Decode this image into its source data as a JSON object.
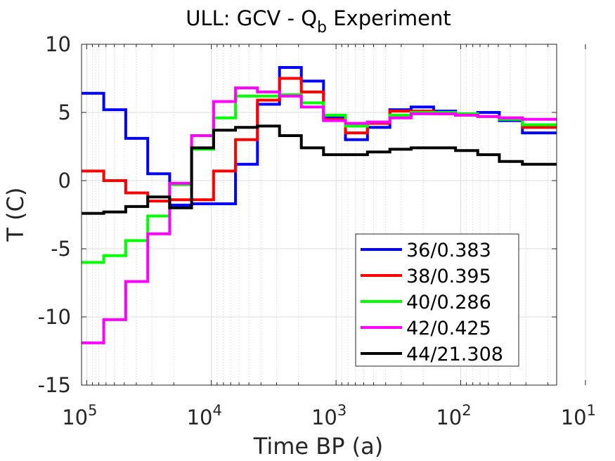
{
  "chart_data": {
    "type": "line",
    "title": {
      "main": "ULL: GCV - Q",
      "subscript": "b",
      "suffix": " Experiment"
    },
    "xlabel": "Time BP (a)",
    "ylabel": "T (C)",
    "x_scale": "log",
    "x_reversed": true,
    "xlim": [
      110000,
      17
    ],
    "ylim": [
      -15,
      10
    ],
    "x_ticks": [
      {
        "value": 100000,
        "base": "10",
        "exp": "5"
      },
      {
        "value": 10000,
        "base": "10",
        "exp": "4"
      },
      {
        "value": 1000,
        "base": "10",
        "exp": "3"
      },
      {
        "value": 100,
        "base": "10",
        "exp": "2"
      },
      {
        "value": 10,
        "base": "10",
        "exp": "1"
      }
    ],
    "y_ticks": [
      {
        "value": 10,
        "label": "10"
      },
      {
        "value": 5,
        "label": "5"
      },
      {
        "value": 0,
        "label": "0"
      },
      {
        "value": -5,
        "label": "-5"
      },
      {
        "value": -10,
        "label": "-10"
      },
      {
        "value": -15,
        "label": "-15"
      }
    ],
    "grid": true,
    "minor_grid_x": true,
    "legend_position": "bottom-right",
    "step_edges": [
      110000,
      73000,
      48600,
      32400,
      21600,
      14400,
      9600,
      6400,
      4270,
      2840,
      1900,
      1260,
      840,
      560,
      370,
      250,
      165,
      110,
      73,
      49,
      32,
      17
    ],
    "series": [
      {
        "name": "36/0.383",
        "color": "#0000ff",
        "values": [
          6.4,
          5.2,
          3.1,
          0.5,
          -1.8,
          -1.7,
          -1.7,
          1.2,
          5.6,
          8.3,
          7.3,
          4.6,
          3.0,
          3.9,
          5.2,
          5.4,
          5.1,
          4.9,
          5.0,
          4.4,
          3.5
        ]
      },
      {
        "name": "38/0.395",
        "color": "#ff0000",
        "values": [
          0.7,
          0.0,
          -0.9,
          -1.5,
          -1.4,
          -1.4,
          0.7,
          3.0,
          5.9,
          7.5,
          6.5,
          4.5,
          3.5,
          4.2,
          5.1,
          5.1,
          4.9,
          4.8,
          4.7,
          4.6,
          3.9
        ]
      },
      {
        "name": "40/0.286",
        "color": "#00ff00",
        "values": [
          -6.0,
          -5.5,
          -4.4,
          -2.6,
          -0.3,
          2.3,
          4.6,
          6.2,
          6.2,
          6.3,
          5.7,
          4.8,
          4.0,
          4.3,
          4.8,
          5.0,
          5.0,
          4.9,
          4.7,
          4.5,
          4.1
        ]
      },
      {
        "name": "42/0.425",
        "color": "#ff00ff",
        "values": [
          -11.9,
          -10.2,
          -7.4,
          -3.9,
          -0.2,
          3.3,
          5.8,
          6.8,
          6.5,
          6.2,
          5.4,
          4.4,
          4.2,
          4.3,
          4.6,
          4.9,
          4.9,
          4.8,
          4.7,
          4.6,
          4.5
        ]
      },
      {
        "name": "44/21.308",
        "color": "#000000",
        "values": [
          -2.4,
          -2.3,
          -1.9,
          -1.2,
          -2.0,
          2.4,
          3.7,
          3.9,
          4.0,
          3.3,
          2.4,
          1.9,
          1.9,
          2.1,
          2.3,
          2.4,
          2.4,
          2.2,
          1.9,
          1.4,
          1.2
        ]
      }
    ]
  }
}
